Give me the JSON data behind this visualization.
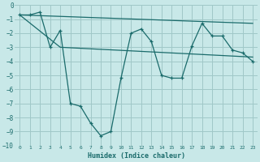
{
  "xlabel": "Humidex (Indice chaleur)",
  "bg_color": "#c8e8e8",
  "grid_color": "#a0c8c8",
  "line_color": "#1a6b6b",
  "xlim": [
    -0.5,
    23.5
  ],
  "ylim": [
    -10,
    0
  ],
  "xticks": [
    0,
    1,
    2,
    3,
    4,
    5,
    6,
    7,
    8,
    9,
    10,
    11,
    12,
    13,
    14,
    15,
    16,
    17,
    18,
    19,
    20,
    21,
    22,
    23
  ],
  "yticks": [
    0,
    -1,
    -2,
    -3,
    -4,
    -5,
    -6,
    -7,
    -8,
    -9,
    -10
  ],
  "main_x": [
    0,
    1,
    2,
    3,
    4,
    5,
    6,
    7,
    8,
    9,
    10,
    11,
    12,
    13,
    14,
    15,
    16,
    17,
    18,
    19,
    20,
    21,
    22,
    23
  ],
  "main_y": [
    -0.7,
    -0.7,
    -0.5,
    -3.0,
    -1.8,
    -7.0,
    -7.2,
    -8.4,
    -9.3,
    -9.0,
    -5.2,
    -2.0,
    -1.7,
    -2.6,
    -5.0,
    -5.2,
    -5.2,
    -2.9,
    -1.3,
    -2.2,
    -2.2,
    -3.2,
    -3.4,
    -4.0
  ],
  "line1_x": [
    0,
    23
  ],
  "line1_y": [
    -0.7,
    -1.3
  ],
  "line2_x": [
    0,
    4,
    23
  ],
  "line2_y": [
    -0.7,
    -3.0,
    -3.7
  ]
}
